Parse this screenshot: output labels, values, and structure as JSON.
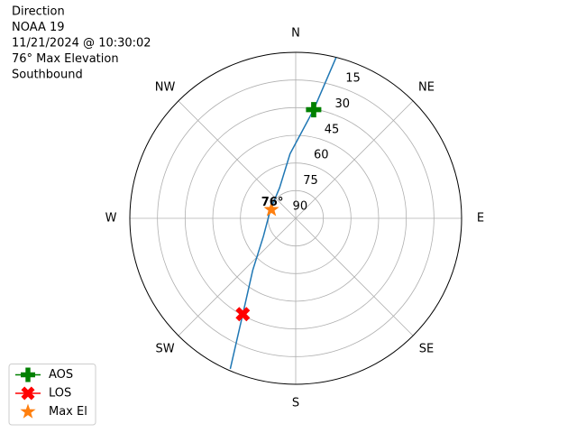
{
  "chart_data": {
    "type": "polar",
    "title_lines": [
      "Direction",
      "NOAA 19",
      "11/21/2024 @ 10:30:02",
      "76° Max Elevation",
      "Southbound"
    ],
    "theta_zero": "N",
    "theta_direction": "clockwise",
    "theta_ticks": [
      {
        "value": 0,
        "label": "N"
      },
      {
        "value": 45,
        "label": "NE"
      },
      {
        "value": 90,
        "label": "E"
      },
      {
        "value": 135,
        "label": "SE"
      },
      {
        "value": 180,
        "label": "S"
      },
      {
        "value": 225,
        "label": "SW"
      },
      {
        "value": 270,
        "label": "W"
      },
      {
        "value": 315,
        "label": "NW"
      }
    ],
    "rlim": [
      90,
      0
    ],
    "rticks": [
      15,
      30,
      45,
      60,
      75,
      90
    ],
    "grid": true,
    "track": {
      "color": "#1f77b4",
      "azimuth": [
        14.1,
        9.4,
        355,
        332,
        289.7,
        241,
        219.6,
        208.9,
        203.5
      ],
      "elevation": [
        0.2,
        30.3,
        54.9,
        71.3,
        75.5,
        70,
        53.4,
        30.6,
        1
      ]
    },
    "markers": [
      {
        "name": "AOS",
        "color": "#008000",
        "marker": "plus",
        "azimuth": 9.4,
        "elevation": 30.3
      },
      {
        "name": "LOS",
        "color": "#ff0000",
        "marker": "x",
        "azimuth": 208.9,
        "elevation": 30.6
      },
      {
        "name": "Max El",
        "color": "#ff7f0e",
        "marker": "star",
        "azimuth": 289.7,
        "elevation": 76,
        "value_label": "76°"
      }
    ],
    "legend": "lower left"
  }
}
